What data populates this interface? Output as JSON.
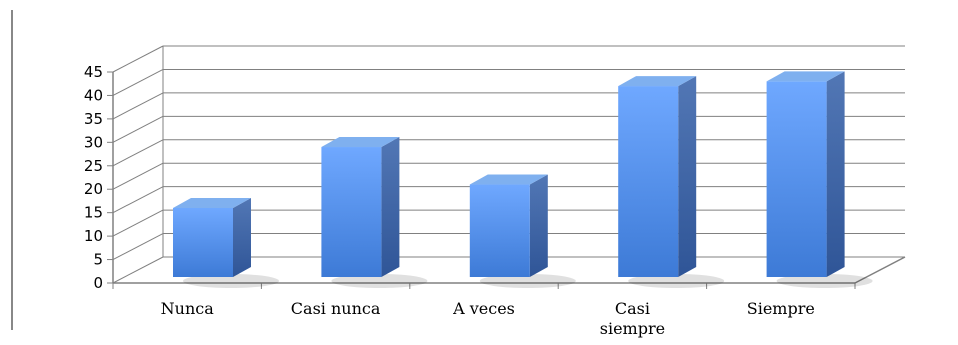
{
  "chart_data": {
    "type": "bar",
    "title": "",
    "xlabel": "",
    "ylabel": "",
    "categories": [
      "Nunca",
      "Casi nunca",
      "A veces",
      "Casi siempre",
      "Siempre"
    ],
    "category_label_lines": [
      [
        "Nunca"
      ],
      [
        "Casi nunca"
      ],
      [
        "A veces"
      ],
      [
        "Casi",
        "siempre"
      ],
      [
        "Siempre"
      ]
    ],
    "values": [
      16,
      29,
      21,
      42,
      43
    ],
    "ylim": [
      0,
      45
    ],
    "yticks": [
      0,
      5,
      10,
      15,
      20,
      25,
      30,
      35,
      40,
      45
    ],
    "style": "3d-column",
    "grid": true,
    "legend": "none",
    "colors": {
      "bar_top": "#6fa8ff",
      "bar_bottom": "#3d7ad6",
      "bar_side": "#2f5597",
      "bar_cap": "#7fb0ef",
      "grid": "#808080",
      "axis": "#808080"
    }
  }
}
